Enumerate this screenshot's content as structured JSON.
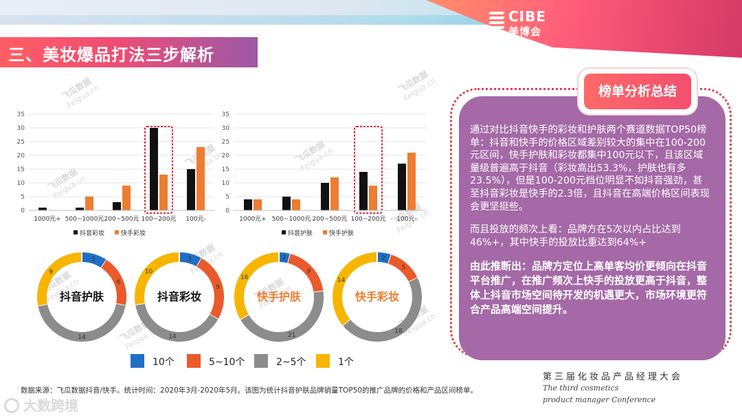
{
  "brand": {
    "logo_en": "CIBE",
    "logo_cn": "美博会"
  },
  "header": {
    "title": "三、美妆爆品打法三步解析"
  },
  "watermark": {
    "cn": "飞瓜数据",
    "en": "Feigua.cn"
  },
  "chart_data": [
    {
      "type": "bar",
      "categories": [
        "1000元+",
        "500~1000元",
        "200~500元",
        "100~200元",
        "100元-"
      ],
      "series": [
        {
          "name": "抖音彩妆",
          "values": [
            1,
            1,
            3,
            30,
            15
          ],
          "color": "#111111"
        },
        {
          "name": "快手彩妆",
          "values": [
            0,
            5,
            9,
            13,
            23
          ],
          "color": "#ed7d31"
        }
      ],
      "yticks": [
        0,
        5,
        10,
        15,
        20,
        25,
        30,
        35
      ],
      "ylim": [
        0,
        35
      ],
      "highlight_category": "100~200元"
    },
    {
      "type": "bar",
      "categories": [
        "1000元+",
        "500~1000元",
        "200~500元",
        "100~200元",
        "100元-"
      ],
      "series": [
        {
          "name": "抖音护肤",
          "values": [
            4,
            5,
            10,
            14,
            17
          ],
          "color": "#111111"
        },
        {
          "name": "快手护肤",
          "values": [
            4,
            4,
            12,
            9,
            21
          ],
          "color": "#ed7d31"
        }
      ],
      "yticks": [
        0,
        5,
        10,
        15,
        20,
        25,
        30,
        35
      ],
      "ylim": [
        0,
        35
      ],
      "highlight_category": "100~200元"
    },
    {
      "type": "pie",
      "title": "抖音护肤",
      "slices": [
        {
          "label": "10个",
          "value": 3
        },
        {
          "label": "5~10个",
          "value": 6
        },
        {
          "label": "2~5个",
          "value": 14
        },
        {
          "label": "1个",
          "value": 9
        }
      ]
    },
    {
      "type": "pie",
      "title": "抖音彩妆",
      "slices": [
        {
          "label": "10个",
          "value": 3
        },
        {
          "label": "5~10个",
          "value": 9
        },
        {
          "label": "2~5个",
          "value": 14
        },
        {
          "label": "1个",
          "value": 10
        }
      ]
    },
    {
      "type": "pie",
      "title": "快手护肤",
      "slices": [
        {
          "label": "10个",
          "value": 2
        },
        {
          "label": "5~10个",
          "value": 9
        },
        {
          "label": "2~5个",
          "value": 21
        },
        {
          "label": "1个",
          "value": 16
        }
      ]
    },
    {
      "type": "pie",
      "title": "快手彩妆",
      "slices": [
        {
          "label": "10个",
          "value": 2
        },
        {
          "label": "5~10个",
          "value": 5
        },
        {
          "label": "2~5个",
          "value": 18
        },
        {
          "label": "1个",
          "value": 14
        }
      ]
    }
  ],
  "donut_legend": [
    {
      "label": "10个",
      "color": "#1f6fc5"
    },
    {
      "label": "5~10个",
      "color": "#ea5a2a"
    },
    {
      "label": "2~5个",
      "color": "#8c8c8c"
    },
    {
      "label": "1个",
      "color": "#f7b500"
    }
  ],
  "donut_colors": {
    "title_dark": "#111111",
    "title_accent": "#ed7d31"
  },
  "summary": {
    "heading": "榜单分析总结",
    "p1": "通过对比抖音快手的彩妆和护肤两个赛道数据TOP50榜单：抖音和快手的价格区域差别较大的集中在100-200元区间，快手护肤和彩妆都集中100元以下，且该区域量级普遍高于抖音（彩妆高出53.3%，护肤也有多23.5%），但是100-200元档位明显不如抖音强劲，甚至抖音彩妆是快手的2.3倍，且抖音在高端价格区间表现会更坚挺些。",
    "p2": "而且投放的频次上看：品牌方在5次以内占比达到46%+，其中快手的投放比重达到64%+",
    "p3": "由此推断出：品牌方定位上高单客均价更倾向在抖音平台推广，在推广频次上快手的投放更高于抖音，整体上抖音市场空间待开发的机遇更大，市场环境更符合产品高端空间提升。"
  },
  "footer": {
    "source": "数据来源：飞瓜数据抖音/快手。统计时间：2020年3月-2020年5月。该图为统计抖音护肤品牌销量TOP50的推广品牌的价格和产品区间榜单。",
    "conf_cn": "第三届化妆品产品经理大会",
    "conf_en1": "The third cosmetics",
    "conf_en2": "product manager Conference",
    "corner_brand": "大数跨境"
  }
}
